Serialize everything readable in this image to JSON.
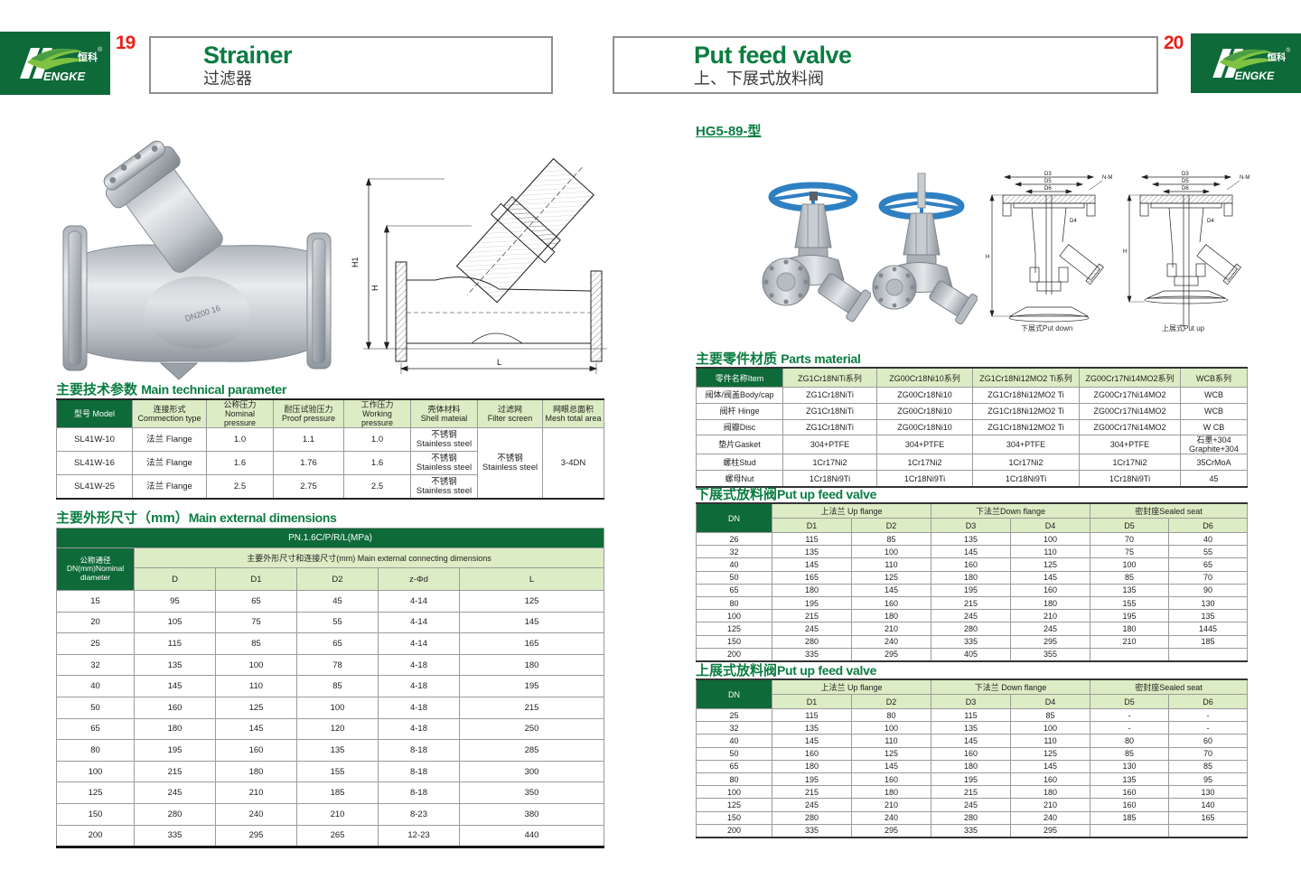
{
  "colors": {
    "brand_green": "#0e6a39",
    "title_green": "#0a7d40",
    "light_green": "#dcecc4",
    "page_red": "#e8211a",
    "wheel_blue": "#2f80c2"
  },
  "brand": {
    "zh": "恒科",
    "en": "ENGKE",
    "reg": "®"
  },
  "page": {
    "left_no": "19",
    "right_no": "20"
  },
  "left": {
    "title_en": "Strainer",
    "title_zh": "过滤器",
    "drawing": {
      "h1": "H1",
      "h": "H",
      "l": "L"
    },
    "tech": {
      "title_zh": "主要技术参数",
      "title_en": "Main technical parameter",
      "headers": [
        "型号 Model",
        "连接形式\nCommection type",
        "公称压力\nNominal pressure",
        "耐压试验压力\nProof pressure",
        "工作压力\nWorking pressure",
        "壳体材料\nShell mateial",
        "过滤网\nFilter screen",
        "网眼总面积\nMesh total area"
      ],
      "rows": [
        [
          "SL41W-10",
          "法兰 Flange",
          "1.0",
          "1.1",
          "1.0",
          "不锈钢\nStainless steel"
        ],
        [
          "SL41W-16",
          "法兰 Flange",
          "1.6",
          "1.76",
          "1.6",
          "不锈钢\nStainless steel"
        ],
        [
          "SL41W-25",
          "法兰 Flange",
          "2.5",
          "2.75",
          "2.5",
          "不锈钢\nStainless steel"
        ]
      ],
      "filter_merged": "不锈钢\nStainless steel",
      "mesh_merged": "3-4DN"
    },
    "dims": {
      "title_zh": "主要外形尺寸（mm）",
      "title_en": "Main external dimensions",
      "pn": "PN.1.6C/P/R/L(MPa)",
      "dn_header": "公称通径\nDN(mm)Nominal\ndiameter",
      "group_header": "主要外形尺寸和连接尺寸(mm) Main external connecting dimensions",
      "columns": [
        "D",
        "D1",
        "D2",
        "z-Φd",
        "L"
      ],
      "rows": [
        [
          "15",
          "95",
          "65",
          "45",
          "4-14",
          "125"
        ],
        [
          "20",
          "105",
          "75",
          "55",
          "4-14",
          "145"
        ],
        [
          "25",
          "115",
          "85",
          "65",
          "4-14",
          "165"
        ],
        [
          "32",
          "135",
          "100",
          "78",
          "4-18",
          "180"
        ],
        [
          "40",
          "145",
          "110",
          "85",
          "4-18",
          "195"
        ],
        [
          "50",
          "160",
          "125",
          "100",
          "4-18",
          "215"
        ],
        [
          "65",
          "180",
          "145",
          "120",
          "4-18",
          "250"
        ],
        [
          "80",
          "195",
          "160",
          "135",
          "8-18",
          "285"
        ],
        [
          "100",
          "215",
          "180",
          "155",
          "8-18",
          "300"
        ],
        [
          "125",
          "245",
          "210",
          "185",
          "8-18",
          "350"
        ],
        [
          "150",
          "280",
          "240",
          "210",
          "8-23",
          "380"
        ],
        [
          "200",
          "335",
          "295",
          "265",
          "12-23",
          "440"
        ]
      ]
    }
  },
  "right": {
    "title_en": "Put feed valve",
    "title_zh": "上、下展式放料阀",
    "model_label": "HG5-89-型",
    "drawing": {
      "d3": "D3",
      "d5": "D5",
      "d6": "D6",
      "nm": "N-M",
      "d4": "D4",
      "h": "H",
      "caption_down": "下展式Put down",
      "caption_up": "上展式Put up"
    },
    "parts": {
      "title_zh": "主要零件材质",
      "title_en": "Parts material",
      "headers": [
        "零件名称Item",
        "ZG1Cr18NiTi系列",
        "ZG00Cr18Ni10系列",
        "ZG1Cr18Ni12MO2 Ti系列",
        "ZG00Cr17Ni14MO2系列",
        "WCB系列"
      ],
      "rows": [
        [
          "阀体/阀盖Body/cap",
          "ZG1Cr18NiTi",
          "ZG00Cr18Ni10",
          "ZG1Cr18Ni12MO2 Ti",
          "ZG00Cr17Ni14MO2",
          "WCB"
        ],
        [
          "阀杆 Hinge",
          "ZG1Cr18NiTi",
          "ZG00Cr18Ni10",
          "ZG1Cr18Ni12MO2 Ti",
          "ZG00Cr17Ni14MO2",
          "WCB"
        ],
        [
          "阀瓣Disc",
          "ZG1Cr18NiTi",
          "ZG00Cr18Ni10",
          "ZG1Cr18Ni12MO2 Ti",
          "ZG00Cr17Ni14MO2",
          "W CB"
        ],
        [
          "垫片Gasket",
          "304+PTFE",
          "304+PTFE",
          "304+PTFE",
          "304+PTFE",
          "石墨+304 Graphite+304"
        ],
        [
          "螺柱Stud",
          "1Cr17Ni2",
          "1Cr17Ni2",
          "1Cr17Ni2",
          "1Cr17Ni2",
          "35CrMoA"
        ],
        [
          "螺母Nut",
          "1Cr18Ni9Ti",
          "1Cr18Ni9Ti",
          "1Cr18Ni9Ti",
          "1Cr18Ni9Ti",
          "45"
        ]
      ]
    },
    "down_valve": {
      "title_zh": "下展式放料阀",
      "title_en": "Put up feed valve",
      "dn": "DN",
      "groups": [
        "上法兰 Up flange",
        "下法兰Down flange",
        "密封座Sealed seat"
      ],
      "columns": [
        "D1",
        "D2",
        "D3",
        "D4",
        "D5",
        "D6"
      ],
      "rows": [
        [
          "26",
          "115",
          "85",
          "135",
          "100",
          "70",
          "40"
        ],
        [
          "32",
          "135",
          "100",
          "145",
          "110",
          "75",
          "55"
        ],
        [
          "40",
          "145",
          "110",
          "160",
          "125",
          "100",
          "65"
        ],
        [
          "50",
          "165",
          "125",
          "180",
          "145",
          "85",
          "70"
        ],
        [
          "65",
          "180",
          "145",
          "195",
          "160",
          "135",
          "90"
        ],
        [
          "80",
          "195",
          "160",
          "215",
          "180",
          "155",
          "130"
        ],
        [
          "100",
          "215",
          "180",
          "245",
          "210",
          "195",
          "135"
        ],
        [
          "125",
          "245",
          "210",
          "280",
          "245",
          "180",
          "1445"
        ],
        [
          "150",
          "280",
          "240",
          "335",
          "295",
          "210",
          "185"
        ],
        [
          "200",
          "335",
          "295",
          "405",
          "355",
          "",
          ""
        ]
      ]
    },
    "up_valve": {
      "title_zh": "上展式放料阀",
      "title_en": "Put up feed valve",
      "dn": "DN",
      "groups": [
        "上法兰 Up flange",
        "下法兰 Down flange",
        "密封座Sealed seat"
      ],
      "columns": [
        "D1",
        "D2",
        "D3",
        "D4",
        "D5",
        "D6"
      ],
      "rows": [
        [
          "25",
          "115",
          "80",
          "115",
          "85",
          "-",
          "-"
        ],
        [
          "32",
          "135",
          "100",
          "135",
          "100",
          "-",
          "-"
        ],
        [
          "40",
          "145",
          "110",
          "145",
          "110",
          "80",
          "60"
        ],
        [
          "50",
          "160",
          "125",
          "160",
          "125",
          "85",
          "70"
        ],
        [
          "65",
          "180",
          "145",
          "180",
          "145",
          "130",
          "85"
        ],
        [
          "80",
          "195",
          "160",
          "195",
          "160",
          "135",
          "95"
        ],
        [
          "100",
          "215",
          "180",
          "215",
          "180",
          "160",
          "130"
        ],
        [
          "125",
          "245",
          "210",
          "245",
          "210",
          "160",
          "140"
        ],
        [
          "150",
          "280",
          "240",
          "280",
          "240",
          "185",
          "165"
        ],
        [
          "200",
          "335",
          "295",
          "335",
          "295",
          "",
          ""
        ]
      ]
    }
  }
}
